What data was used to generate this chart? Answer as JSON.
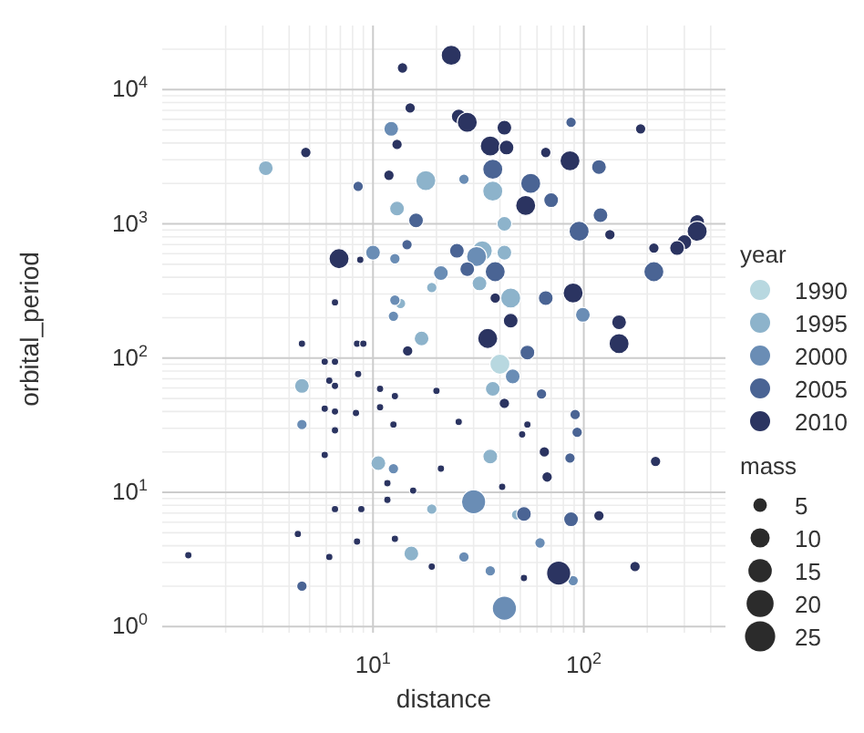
{
  "chart_data": {
    "type": "bubble",
    "xlabel": "distance",
    "ylabel": "orbital_period",
    "legend_title": "year",
    "legend": "right",
    "grid": true,
    "log": "xy",
    "marker": "circle",
    "xlim": [
      1,
      470
    ],
    "ylim": [
      0.9,
      30000
    ],
    "xticks": [
      {
        "value": 2,
        "label": null
      },
      {
        "value": 3,
        "label": null
      },
      {
        "value": 4,
        "label": null
      },
      {
        "value": 5,
        "label": null
      },
      {
        "value": 6,
        "label": null
      },
      {
        "value": 7,
        "label": null
      },
      {
        "value": 8,
        "label": null
      },
      {
        "value": 9,
        "label": null
      },
      {
        "value": 10,
        "label": "10$^{1}$"
      },
      {
        "value": 20,
        "label": null
      },
      {
        "value": 30,
        "label": null
      },
      {
        "value": 40,
        "label": null
      },
      {
        "value": 50,
        "label": null
      },
      {
        "value": 60,
        "label": null
      },
      {
        "value": 70,
        "label": null
      },
      {
        "value": 80,
        "label": null
      },
      {
        "value": 90,
        "label": null
      },
      {
        "value": 100,
        "label": "10$^{2}$"
      },
      {
        "value": 200,
        "label": null
      },
      {
        "value": 300,
        "label": null
      },
      {
        "value": 400,
        "label": null
      }
    ],
    "yticks": [
      {
        "value": 1,
        "label": "10$^{0}$"
      },
      {
        "value": 2,
        "label": null
      },
      {
        "value": 3,
        "label": null
      },
      {
        "value": 4,
        "label": null
      },
      {
        "value": 5,
        "label": null
      },
      {
        "value": 6,
        "label": null
      },
      {
        "value": 7,
        "label": null
      },
      {
        "value": 8,
        "label": null
      },
      {
        "value": 9,
        "label": null
      },
      {
        "value": 10,
        "label": "10$^{1}$"
      },
      {
        "value": 20,
        "label": null
      },
      {
        "value": 30,
        "label": null
      },
      {
        "value": 40,
        "label": null
      },
      {
        "value": 50,
        "label": null
      },
      {
        "value": 60,
        "label": null
      },
      {
        "value": 70,
        "label": null
      },
      {
        "value": 80,
        "label": null
      },
      {
        "value": 90,
        "label": null
      },
      {
        "value": 100,
        "label": "10$^{2}$"
      },
      {
        "value": 200,
        "label": null
      },
      {
        "value": 300,
        "label": null
      },
      {
        "value": 400,
        "label": null
      },
      {
        "value": 500,
        "label": null
      },
      {
        "value": 600,
        "label": null
      },
      {
        "value": 700,
        "label": null
      },
      {
        "value": 800,
        "label": null
      },
      {
        "value": 900,
        "label": null
      },
      {
        "value": 1000,
        "label": "10$^{3}$"
      },
      {
        "value": 2000,
        "label": null
      },
      {
        "value": 3000,
        "label": null
      },
      {
        "value": 4000,
        "label": null
      },
      {
        "value": 5000,
        "label": null
      },
      {
        "value": 6000,
        "label": null
      },
      {
        "value": 7000,
        "label": null
      },
      {
        "value": 8000,
        "label": null
      },
      {
        "value": 9000,
        "label": null
      },
      {
        "value": 10000,
        "label": "10$^{4}$"
      },
      {
        "value": 20000,
        "label": null
      }
    ],
    "size_legend": [
      5,
      10,
      15,
      20,
      25
    ],
    "annotations": [
      "mass"
    ],
    "series": [
      {
        "name": "1990",
        "color": "#b8d8e0",
        "x": [
          40
        ],
        "values": [
          90
        ],
        "sizes": [
          11
        ]
      },
      {
        "name": "1995",
        "color": "#8db3cb",
        "x": [
          3.1,
          13,
          17.8,
          37,
          42,
          33,
          42,
          32,
          45,
          17,
          13.5,
          4.6,
          10.6,
          15.2,
          37,
          36,
          19,
          48,
          19
        ],
        "values": [
          2600,
          1300,
          2100,
          1750,
          1000,
          630,
          610,
          360,
          280,
          140,
          255,
          62,
          16.5,
          3.5,
          59,
          18.5,
          7.5,
          6.8,
          335
        ],
        "sizes": [
          6,
          6,
          11,
          11,
          6,
          11,
          6,
          6,
          11,
          6,
          3,
          6,
          6,
          6,
          6,
          6,
          3,
          3,
          3
        ]
      },
      {
        "name": "2000",
        "color": "#6a8db5",
        "x": [
          10,
          12.7,
          12.2,
          12.7,
          12.5,
          31,
          21,
          99,
          4.6,
          12.5,
          46,
          30,
          62,
          36,
          27,
          89,
          42,
          27
        ],
        "values": [
          610,
          550,
          5100,
          270,
          205,
          570,
          430,
          210,
          32,
          15,
          73,
          8.5,
          4.2,
          2.6,
          3.3,
          2.2,
          1.37,
          2150
        ],
        "sizes": [
          6,
          3,
          6,
          3,
          3,
          11,
          6,
          6,
          3,
          3,
          6,
          16,
          3,
          3,
          3,
          3,
          16,
          3
        ]
      },
      {
        "name": "2005",
        "color": "#4a6494",
        "x": [
          8.5,
          14.5,
          87,
          118,
          37,
          56,
          70,
          16,
          95,
          120,
          215,
          25,
          28,
          38,
          66,
          54,
          4.6,
          63,
          91,
          93,
          52,
          87,
          86
        ],
        "values": [
          1900,
          700,
          5700,
          2650,
          2550,
          2000,
          1500,
          1060,
          880,
          1160,
          440,
          630,
          460,
          440,
          280,
          110,
          2.0,
          54,
          38,
          28,
          6.9,
          6.3,
          18
        ],
        "sizes": [
          3,
          3,
          3,
          6,
          11,
          11,
          6,
          6,
          11,
          6,
          11,
          6,
          6,
          11,
          6,
          6,
          3,
          3,
          3,
          3,
          6,
          6,
          3
        ]
      },
      {
        "name": "2010",
        "color": "#2b3461",
        "x": [
          13.8,
          23.5,
          25.5,
          28,
          42,
          36,
          43,
          66,
          186,
          86,
          53,
          133,
          345,
          345,
          300,
          277,
          215,
          4.8,
          6.9,
          8.7,
          6.6,
          4.6,
          8.4,
          9,
          14.6,
          15,
          13,
          11.9,
          89,
          38,
          147,
          45,
          35,
          147,
          1.33,
          5.9,
          6.6,
          6.2,
          6.6,
          8.5,
          5.9,
          6.6,
          8.3,
          6.6,
          5.9,
          6.6,
          4.4,
          6.2,
          8.4,
          8.8,
          12.7,
          10.8,
          42,
          219,
          67,
          118,
          76,
          175,
          12.7,
          11.7,
          20,
          25.5,
          15.5,
          21,
          41,
          54,
          51,
          52,
          19,
          11.7,
          12.5,
          65,
          10.8
        ],
        "values": [
          14500,
          18000,
          6300,
          5700,
          5200,
          3800,
          3700,
          3400,
          5100,
          2950,
          1370,
          830,
          1030,
          880,
          730,
          660,
          660,
          3400,
          550,
          540,
          260,
          128,
          128,
          128,
          113,
          7300,
          3900,
          2300,
          305,
          280,
          185,
          190,
          140,
          128,
          3.4,
          94,
          94,
          68,
          62,
          76,
          42,
          40,
          39,
          29,
          19,
          7.5,
          4.9,
          3.3,
          4.3,
          7.5,
          52,
          43,
          46,
          17,
          13,
          6.7,
          2.5,
          2.8,
          4.5,
          8.8,
          57,
          33.5,
          10.3,
          15,
          11,
          32,
          27,
          2.3,
          2.8,
          11.7,
          32,
          20,
          59
        ],
        "sizes": [
          3,
          11,
          6,
          11,
          6,
          11,
          6,
          3,
          3,
          11,
          11,
          3,
          6,
          11,
          6,
          6,
          3,
          3,
          11,
          1.5,
          1.5,
          1.5,
          1.5,
          1.5,
          3,
          3,
          3,
          3,
          11,
          3,
          6,
          6,
          11,
          11,
          1.5,
          1.5,
          1.5,
          1.5,
          1.5,
          1.5,
          1.5,
          1.5,
          1.5,
          1.5,
          1.5,
          1.5,
          1.5,
          1.5,
          1.5,
          1.5,
          1.5,
          1.5,
          3,
          3,
          3,
          3,
          16,
          3,
          1.5,
          1.5,
          1.5,
          1.5,
          1.5,
          1.5,
          1.5,
          1.5,
          1.5,
          1.5,
          1.5,
          1.5,
          1.5,
          3,
          1.5
        ]
      }
    ]
  }
}
